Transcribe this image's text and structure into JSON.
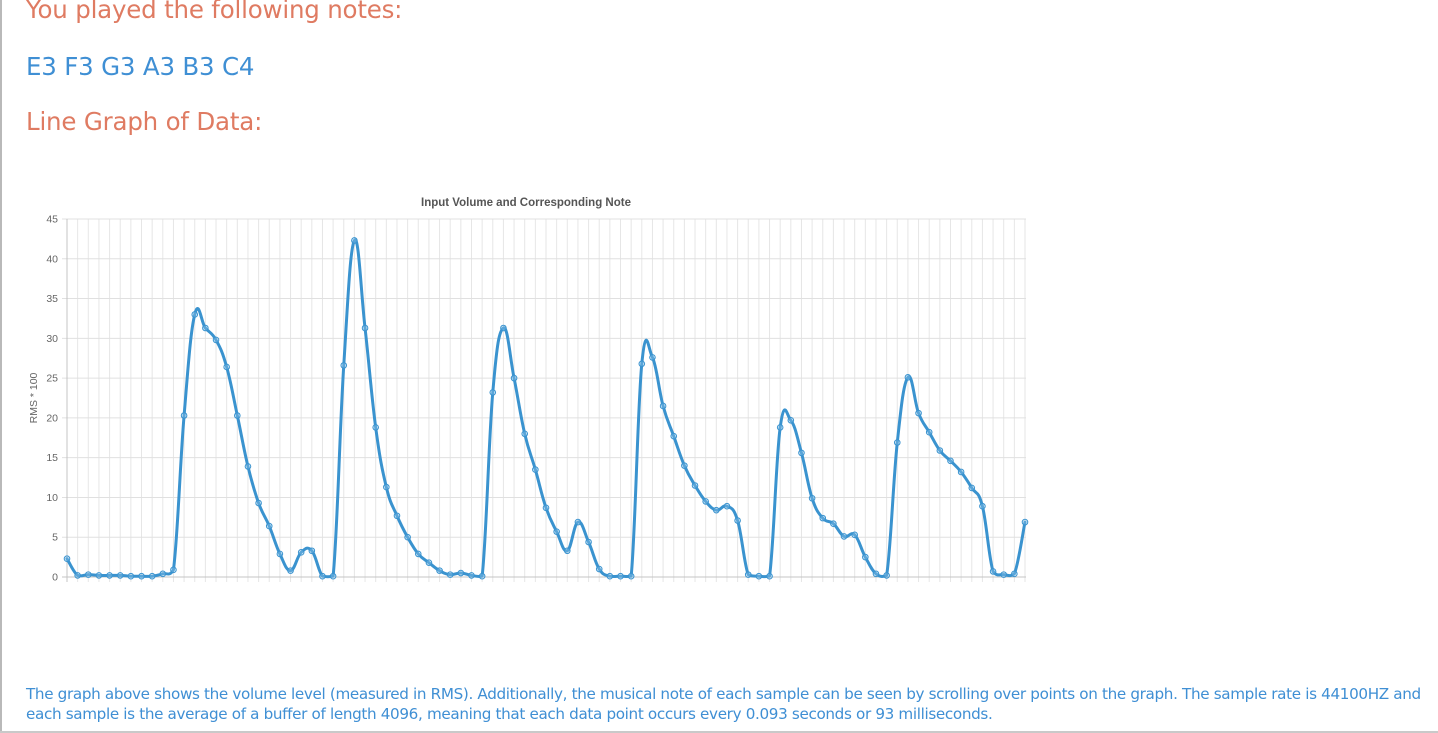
{
  "page": {
    "played_heading": "You played the following notes:",
    "notes": "E3 F3 G3 A3 B3 C4",
    "graph_heading": "Line Graph of Data:",
    "footer_text": "The graph above shows the volume level (measured in RMS). Additionally, the musical note of each sample can be seen by scrolling over points on the graph. The sample rate is 44100HZ and each sample is the average of a buffer of length 4096, meaning that each data point occurs every 0.093 seconds or 93 milliseconds."
  },
  "chart_data": {
    "type": "line",
    "title": "Input Volume and Corresponding Note",
    "xlabel": "",
    "ylabel": "RMS * 100",
    "ylim": [
      0,
      45
    ],
    "y_ticks": [
      0,
      5,
      10,
      15,
      20,
      25,
      30,
      35,
      40,
      45
    ],
    "grid": true,
    "legend": "none",
    "line_color": "#3a93cf",
    "series": [
      {
        "values": [
          2.3,
          0.2,
          0.3,
          0.2,
          0.2,
          0.2,
          0.1,
          0.1,
          0.1,
          0.4,
          0.9,
          20.3,
          33.0,
          31.3,
          29.8,
          26.4,
          20.3,
          13.9,
          9.3,
          6.4,
          2.9,
          0.8,
          3.1,
          3.3,
          0.1,
          0.1,
          26.6,
          42.3,
          31.3,
          18.8,
          11.3,
          7.7,
          5.0,
          2.9,
          1.8,
          0.8,
          0.3,
          0.5,
          0.2,
          0.1,
          23.2,
          31.3,
          25.0,
          18.0,
          13.5,
          8.7,
          5.7,
          3.3,
          6.9,
          4.4,
          1.0,
          0.1,
          0.1,
          0.1,
          26.8,
          27.6,
          21.5,
          17.7,
          14.0,
          11.5,
          9.5,
          8.4,
          8.9,
          7.1,
          0.3,
          0.1,
          0.1,
          18.8,
          19.7,
          15.6,
          9.9,
          7.4,
          6.7,
          5.1,
          5.3,
          2.5,
          0.4,
          0.2,
          16.9,
          25.1,
          20.6,
          18.2,
          15.9,
          14.6,
          13.2,
          11.2,
          8.9,
          0.7,
          0.3,
          0.4,
          6.9
        ]
      }
    ]
  }
}
